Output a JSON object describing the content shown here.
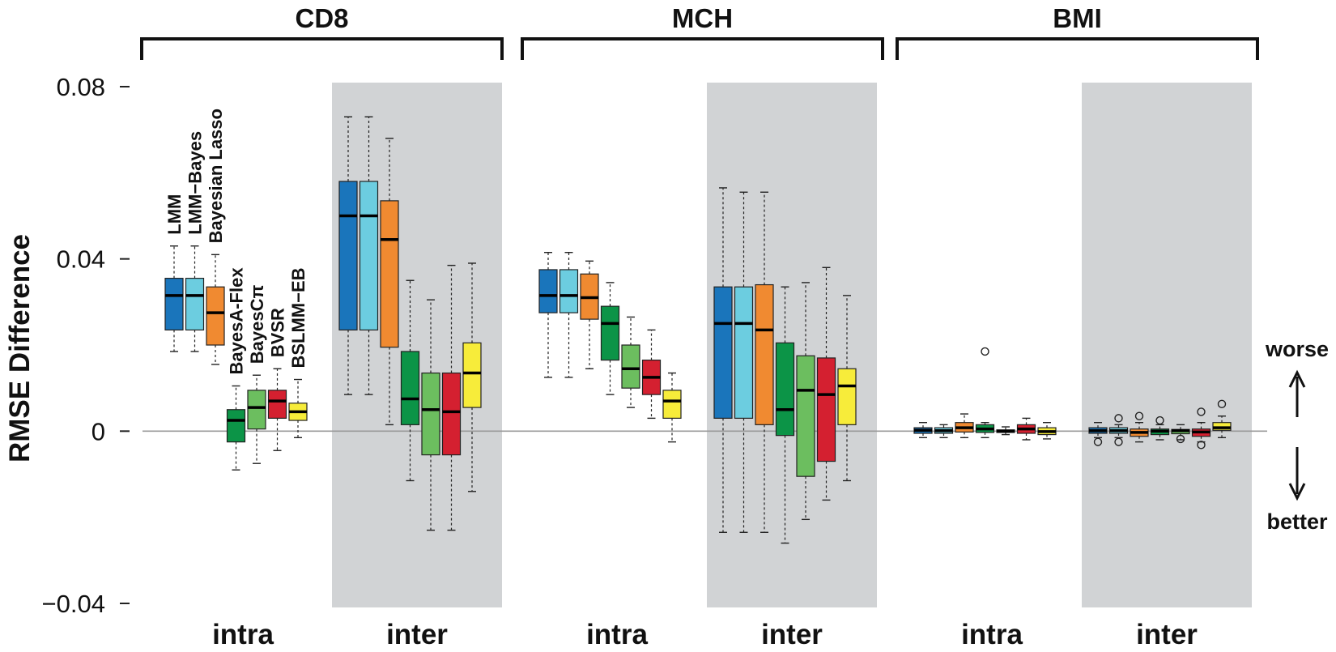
{
  "chart_data": {
    "type": "boxplot",
    "ylabel": "RMSE Difference",
    "ylim": [
      -0.04,
      0.08
    ],
    "yticks": [
      {
        "value": 0.08,
        "label": "0.08"
      },
      {
        "value": 0.04,
        "label": "0.04"
      },
      {
        "value": 0,
        "label": "0"
      },
      {
        "value": -0.04,
        "label": "−0.04"
      }
    ],
    "methods": [
      {
        "name": "LMM",
        "color": "#1a75bb"
      },
      {
        "name": "LMM−Bayes",
        "color": "#6ccde0"
      },
      {
        "name": "Bayesian Lasso",
        "color": "#f08a31"
      },
      {
        "name": "BayesA-Flex",
        "color": "#0c9447"
      },
      {
        "name": "BayesCπ",
        "color": "#6cbe5f"
      },
      {
        "name": "BVSR",
        "color": "#d42030"
      },
      {
        "name": "BSLMM−EB",
        "color": "#f7ec3a"
      }
    ],
    "traits": [
      {
        "name": "CD8",
        "panels": [
          {
            "label": "intra",
            "shaded": false,
            "boxes": [
              {
                "whisker_low": 0.0185,
                "q1": 0.0235,
                "median": 0.0315,
                "q3": 0.0355,
                "whisker_high": 0.043,
                "outliers": []
              },
              {
                "whisker_low": 0.0185,
                "q1": 0.0235,
                "median": 0.0315,
                "q3": 0.0355,
                "whisker_high": 0.043,
                "outliers": []
              },
              {
                "whisker_low": 0.0155,
                "q1": 0.02,
                "median": 0.0275,
                "q3": 0.0335,
                "whisker_high": 0.041,
                "outliers": []
              },
              {
                "whisker_low": -0.009,
                "q1": -0.0025,
                "median": 0.0025,
                "q3": 0.005,
                "whisker_high": 0.0105,
                "outliers": []
              },
              {
                "whisker_low": -0.0075,
                "q1": 0.0005,
                "median": 0.0055,
                "q3": 0.0095,
                "whisker_high": 0.013,
                "outliers": []
              },
              {
                "whisker_low": -0.0045,
                "q1": 0.003,
                "median": 0.007,
                "q3": 0.0095,
                "whisker_high": 0.0145,
                "outliers": []
              },
              {
                "whisker_low": -0.0015,
                "q1": 0.0025,
                "median": 0.0045,
                "q3": 0.0065,
                "whisker_high": 0.012,
                "outliers": []
              }
            ]
          },
          {
            "label": "inter",
            "shaded": true,
            "boxes": [
              {
                "whisker_low": 0.0085,
                "q1": 0.0235,
                "median": 0.05,
                "q3": 0.058,
                "whisker_high": 0.073,
                "outliers": []
              },
              {
                "whisker_low": 0.0085,
                "q1": 0.0235,
                "median": 0.05,
                "q3": 0.058,
                "whisker_high": 0.073,
                "outliers": []
              },
              {
                "whisker_low": 0.0015,
                "q1": 0.0195,
                "median": 0.0445,
                "q3": 0.0535,
                "whisker_high": 0.068,
                "outliers": []
              },
              {
                "whisker_low": -0.0115,
                "q1": 0.0015,
                "median": 0.0075,
                "q3": 0.0185,
                "whisker_high": 0.035,
                "outliers": []
              },
              {
                "whisker_low": -0.023,
                "q1": -0.0055,
                "median": 0.005,
                "q3": 0.0135,
                "whisker_high": 0.0305,
                "outliers": []
              },
              {
                "whisker_low": -0.023,
                "q1": -0.0055,
                "median": 0.0045,
                "q3": 0.0135,
                "whisker_high": 0.0385,
                "outliers": []
              },
              {
                "whisker_low": -0.014,
                "q1": 0.0055,
                "median": 0.0135,
                "q3": 0.0205,
                "whisker_high": 0.039,
                "outliers": []
              }
            ]
          }
        ]
      },
      {
        "name": "MCH",
        "panels": [
          {
            "label": "intra",
            "shaded": false,
            "boxes": [
              {
                "whisker_low": 0.0125,
                "q1": 0.0275,
                "median": 0.0315,
                "q3": 0.0375,
                "whisker_high": 0.0415,
                "outliers": []
              },
              {
                "whisker_low": 0.0125,
                "q1": 0.0275,
                "median": 0.0315,
                "q3": 0.0375,
                "whisker_high": 0.0415,
                "outliers": []
              },
              {
                "whisker_low": 0.0145,
                "q1": 0.026,
                "median": 0.031,
                "q3": 0.0365,
                "whisker_high": 0.0395,
                "outliers": []
              },
              {
                "whisker_low": 0.0085,
                "q1": 0.0165,
                "median": 0.025,
                "q3": 0.029,
                "whisker_high": 0.0345,
                "outliers": []
              },
              {
                "whisker_low": 0.0055,
                "q1": 0.01,
                "median": 0.0145,
                "q3": 0.02,
                "whisker_high": 0.0265,
                "outliers": []
              },
              {
                "whisker_low": 0.003,
                "q1": 0.0085,
                "median": 0.0125,
                "q3": 0.0165,
                "whisker_high": 0.0235,
                "outliers": []
              },
              {
                "whisker_low": -0.0025,
                "q1": 0.003,
                "median": 0.007,
                "q3": 0.0095,
                "whisker_high": 0.0135,
                "outliers": []
              }
            ]
          },
          {
            "label": "inter",
            "shaded": true,
            "boxes": [
              {
                "whisker_low": -0.0235,
                "q1": 0.003,
                "median": 0.025,
                "q3": 0.0335,
                "whisker_high": 0.0565,
                "outliers": []
              },
              {
                "whisker_low": -0.0235,
                "q1": 0.003,
                "median": 0.025,
                "q3": 0.0335,
                "whisker_high": 0.0555,
                "outliers": []
              },
              {
                "whisker_low": -0.0235,
                "q1": 0.0015,
                "median": 0.0235,
                "q3": 0.034,
                "whisker_high": 0.0555,
                "outliers": []
              },
              {
                "whisker_low": -0.026,
                "q1": -0.001,
                "median": 0.005,
                "q3": 0.0205,
                "whisker_high": 0.0335,
                "outliers": []
              },
              {
                "whisker_low": -0.0205,
                "q1": -0.0105,
                "median": 0.0095,
                "q3": 0.0175,
                "whisker_high": 0.0345,
                "outliers": []
              },
              {
                "whisker_low": -0.016,
                "q1": -0.007,
                "median": 0.0085,
                "q3": 0.017,
                "whisker_high": 0.038,
                "outliers": []
              },
              {
                "whisker_low": -0.0115,
                "q1": 0.0015,
                "median": 0.0105,
                "q3": 0.0145,
                "whisker_high": 0.0315,
                "outliers": []
              }
            ]
          }
        ]
      },
      {
        "name": "BMI",
        "panels": [
          {
            "label": "intra",
            "shaded": false,
            "boxes": [
              {
                "whisker_low": -0.0015,
                "q1": -0.0005,
                "median": 0.0002,
                "q3": 0.0008,
                "whisker_high": 0.002,
                "outliers": []
              },
              {
                "whisker_low": -0.0015,
                "q1": -0.0005,
                "median": 0.0001,
                "q3": 0.0008,
                "whisker_high": 0.0015,
                "outliers": []
              },
              {
                "whisker_low": -0.0015,
                "q1": -0.0002,
                "median": 0.0008,
                "q3": 0.002,
                "whisker_high": 0.004,
                "outliers": []
              },
              {
                "whisker_low": -0.0015,
                "q1": -0.0003,
                "median": 0.0005,
                "q3": 0.0015,
                "whisker_high": 0.002,
                "outliers": [
                  0.0185
                ]
              },
              {
                "whisker_low": -0.0008,
                "q1": -0.0003,
                "median": 0.0,
                "q3": 0.0003,
                "whisker_high": 0.001,
                "outliers": []
              },
              {
                "whisker_low": -0.002,
                "q1": -0.0005,
                "median": 0.0005,
                "q3": 0.0015,
                "whisker_high": 0.003,
                "outliers": []
              },
              {
                "whisker_low": -0.0018,
                "q1": -0.0008,
                "median": -0.0001,
                "q3": 0.0008,
                "whisker_high": 0.002,
                "outliers": []
              }
            ]
          },
          {
            "label": "inter",
            "shaded": true,
            "boxes": [
              {
                "whisker_low": -0.0015,
                "q1": -0.0005,
                "median": 0.0001,
                "q3": 0.0008,
                "whisker_high": 0.002,
                "outliers": [
                  -0.0025
                ]
              },
              {
                "whisker_low": -0.0015,
                "q1": -0.0005,
                "median": 0.0001,
                "q3": 0.0008,
                "whisker_high": 0.0015,
                "outliers": [
                  -0.0025,
                  0.003
                ]
              },
              {
                "whisker_low": -0.0025,
                "q1": -0.0012,
                "median": -0.0003,
                "q3": 0.0005,
                "whisker_high": 0.002,
                "outliers": [
                  0.0035
                ]
              },
              {
                "whisker_low": -0.002,
                "q1": -0.0008,
                "median": 0.0,
                "q3": 0.0005,
                "whisker_high": 0.0015,
                "outliers": [
                  0.0025
                ]
              },
              {
                "whisker_low": -0.002,
                "q1": -0.0006,
                "median": 0.0001,
                "q3": 0.0004,
                "whisker_high": 0.0015,
                "outliers": [
                  -0.0018
                ]
              },
              {
                "whisker_low": -0.0025,
                "q1": -0.0012,
                "median": -0.0002,
                "q3": 0.0005,
                "whisker_high": 0.002,
                "outliers": [
                  -0.0032,
                  0.0045
                ]
              },
              {
                "whisker_low": -0.0015,
                "q1": 0.0002,
                "median": 0.0008,
                "q3": 0.002,
                "whisker_high": 0.0035,
                "outliers": [
                  0.0063
                ]
              }
            ]
          }
        ]
      }
    ],
    "annotations": {
      "up_label": "worse",
      "down_label": "better"
    }
  }
}
